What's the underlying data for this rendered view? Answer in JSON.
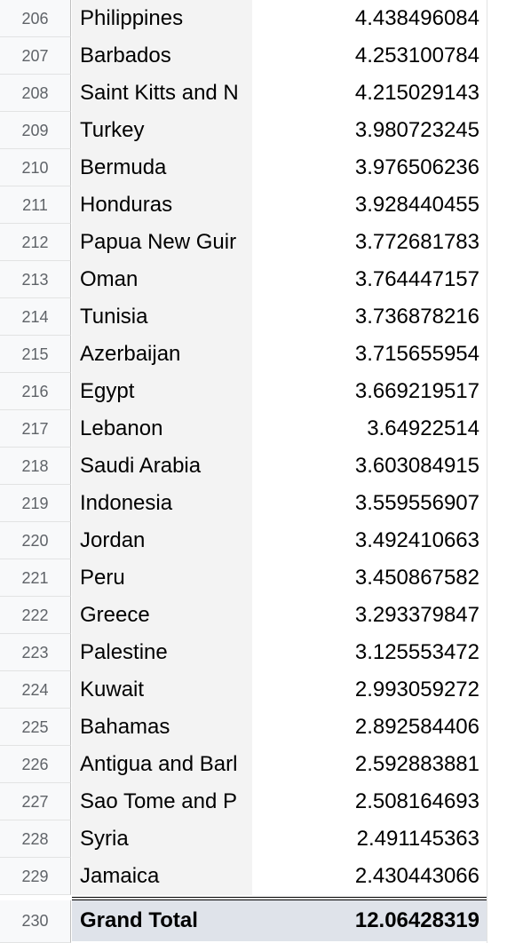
{
  "rows": [
    {
      "num": "206",
      "country": "Philippines",
      "value": "4.438496084"
    },
    {
      "num": "207",
      "country": "Barbados",
      "value": "4.253100784"
    },
    {
      "num": "208",
      "country": "Saint Kitts and N",
      "value": "4.215029143"
    },
    {
      "num": "209",
      "country": "Turkey",
      "value": "3.980723245"
    },
    {
      "num": "210",
      "country": "Bermuda",
      "value": "3.976506236"
    },
    {
      "num": "211",
      "country": "Honduras",
      "value": "3.928440455"
    },
    {
      "num": "212",
      "country": "Papua New Guir",
      "value": "3.772681783"
    },
    {
      "num": "213",
      "country": "Oman",
      "value": "3.764447157"
    },
    {
      "num": "214",
      "country": "Tunisia",
      "value": "3.736878216"
    },
    {
      "num": "215",
      "country": "Azerbaijan",
      "value": "3.715655954"
    },
    {
      "num": "216",
      "country": "Egypt",
      "value": "3.669219517"
    },
    {
      "num": "217",
      "country": "Lebanon",
      "value": "3.64922514"
    },
    {
      "num": "218",
      "country": "Saudi Arabia",
      "value": "3.603084915"
    },
    {
      "num": "219",
      "country": "Indonesia",
      "value": "3.559556907"
    },
    {
      "num": "220",
      "country": "Jordan",
      "value": "3.492410663"
    },
    {
      "num": "221",
      "country": "Peru",
      "value": "3.450867582"
    },
    {
      "num": "222",
      "country": "Greece",
      "value": "3.293379847"
    },
    {
      "num": "223",
      "country": "Palestine",
      "value": "3.125553472"
    },
    {
      "num": "224",
      "country": "Kuwait",
      "value": "2.993059272"
    },
    {
      "num": "225",
      "country": "Bahamas",
      "value": "2.892584406"
    },
    {
      "num": "226",
      "country": "Antigua and Barl",
      "value": "2.592883881"
    },
    {
      "num": "227",
      "country": "Sao Tome and P",
      "value": "2.508164693"
    },
    {
      "num": "228",
      "country": "Syria",
      "value": "2.491145363"
    },
    {
      "num": "229",
      "country": "Jamaica",
      "value": "2.430443066"
    }
  ],
  "grand_total": {
    "num": "230",
    "label": "Grand Total",
    "value": "12.06428319"
  }
}
